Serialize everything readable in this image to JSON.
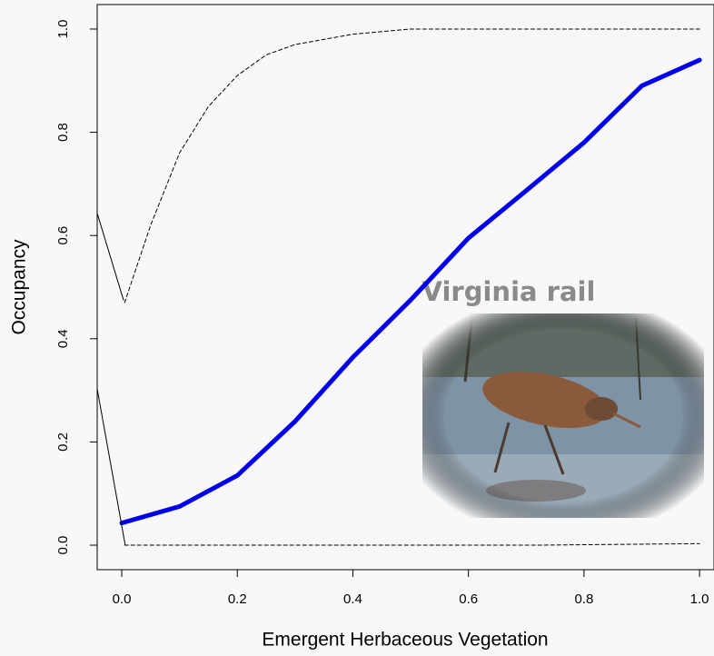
{
  "chart_data": {
    "type": "line",
    "x_label": "Emergent Herbaceous Vegetation",
    "y_label": "Occupancy",
    "annotation": "Virginia rail",
    "xlim": [
      -0.0425,
      1.025
    ],
    "ylim": [
      -0.0475,
      1.0475
    ],
    "xticks": [
      {
        "value": 0,
        "label": "0.0"
      },
      0.2,
      0.4,
      0.6,
      0.8,
      {
        "value": 1,
        "label": "1.0"
      }
    ],
    "yticks": [
      {
        "value": 0,
        "label": "0.0"
      },
      0.2,
      0.4,
      0.6,
      0.8,
      {
        "value": 1,
        "label": "1.0"
      }
    ],
    "grid": false,
    "series": [
      {
        "color": "#0000ee",
        "linestyle": "solid",
        "width": 5,
        "x": [
          0,
          0.1,
          0.2,
          0.3,
          0.4,
          0.5,
          0.6,
          0.7,
          0.8,
          0.9,
          1.0
        ],
        "values": [
          0.043,
          0.075,
          0.135,
          0.24,
          0.364,
          0.475,
          0.595,
          0.687,
          0.78,
          0.89,
          0.94
        ]
      },
      {
        "color": "#000000",
        "linestyle": "dashed",
        "width": 1,
        "x": [
          0.005,
          0.05,
          0.1,
          0.15,
          0.2,
          0.25,
          0.3,
          0.4,
          0.5,
          1.0
        ],
        "values": [
          0.47,
          0.62,
          0.76,
          0.85,
          0.91,
          0.95,
          0.97,
          0.99,
          1.0,
          1.0
        ]
      },
      {
        "color": "#000000",
        "linestyle": "dashed",
        "width": 1,
        "x": [
          0.005,
          0.72,
          1.0
        ],
        "values": [
          0.0,
          0.0,
          0.003
        ]
      },
      {
        "color": "#000000",
        "linestyle": "solid",
        "width": 1,
        "x": [
          -0.0425,
          0.003
        ],
        "values": [
          0.643,
          0.475
        ]
      },
      {
        "color": "#000000",
        "linestyle": "solid",
        "width": 1,
        "x": [
          -0.0425,
          0.006
        ],
        "values": [
          0.303,
          0.0
        ]
      }
    ]
  }
}
